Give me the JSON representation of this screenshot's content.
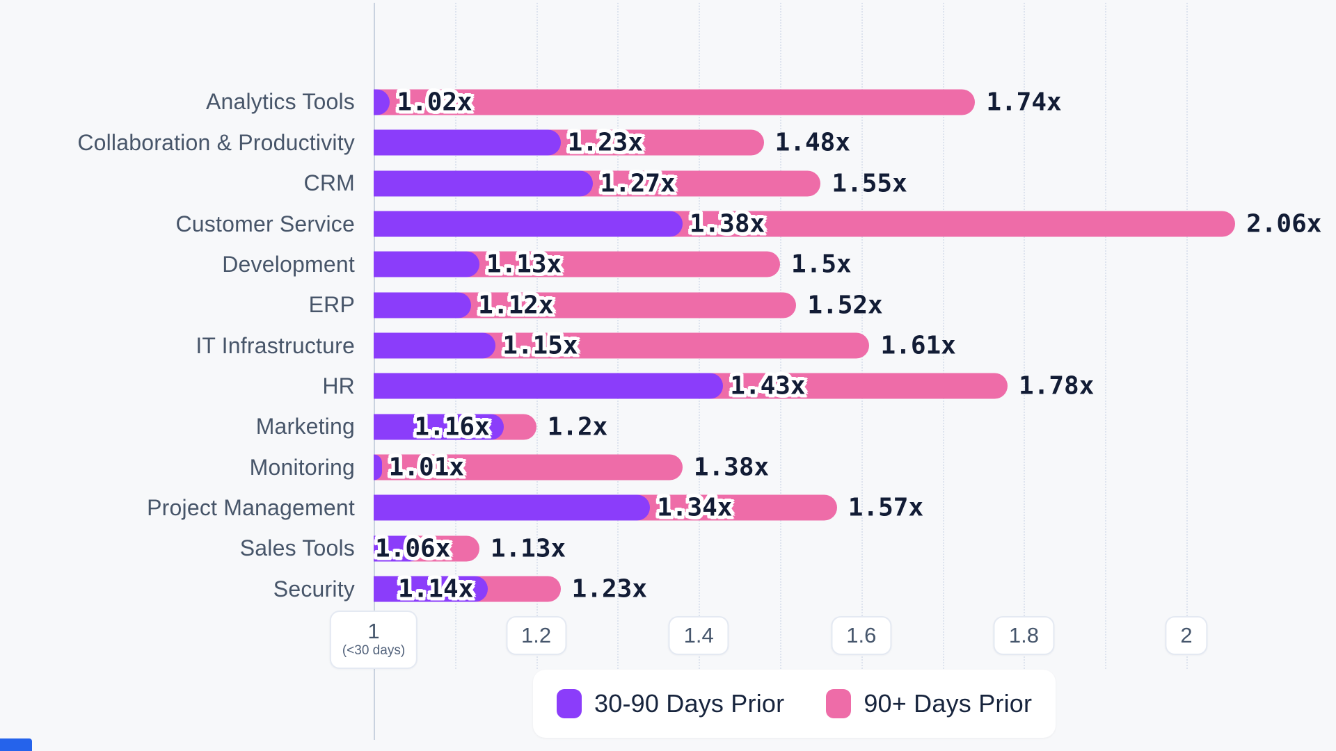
{
  "chart_data": {
    "type": "bar",
    "orientation": "horizontal",
    "categories": [
      "Analytics Tools",
      "Collaboration & Productivity",
      "CRM",
      "Customer Service",
      "Development",
      "ERP",
      "IT Infrastructure",
      "HR",
      "Marketing",
      "Monitoring",
      "Project Management",
      "Sales Tools",
      "Security"
    ],
    "series": [
      {
        "name": "30-90 Days Prior",
        "color": "#8b3dfa",
        "values": [
          1.02,
          1.23,
          1.27,
          1.38,
          1.13,
          1.12,
          1.15,
          1.43,
          1.16,
          1.01,
          1.34,
          1.06,
          1.14
        ],
        "labels": [
          "1.02x",
          "1.23x",
          "1.27x",
          "1.38x",
          "1.13x",
          "1.12x",
          "1.15x",
          "1.43x",
          "1.16x",
          "1.01x",
          "1.34x",
          "1.06x",
          "1.14x"
        ]
      },
      {
        "name": "90+ Days Prior",
        "color": "#ee6ca8",
        "values": [
          1.74,
          1.48,
          1.55,
          2.06,
          1.5,
          1.52,
          1.61,
          1.78,
          1.2,
          1.38,
          1.57,
          1.13,
          1.23
        ],
        "labels": [
          "1.74x",
          "1.48x",
          "1.55x",
          "2.06x",
          "1.5x",
          "1.52x",
          "1.61x",
          "1.78x",
          "1.2x",
          "1.38x",
          "1.57x",
          "1.13x",
          "1.23x"
        ]
      }
    ],
    "value_suffix": "x",
    "x_axis": {
      "min": 1,
      "max": 2.12,
      "minor_grid_step": 0.1,
      "grid_style": "dotted",
      "ticks": [
        {
          "value": 1,
          "label": "1",
          "sublabel": "(<30 days)"
        },
        {
          "value": 1.2,
          "label": "1.2"
        },
        {
          "value": 1.4,
          "label": "1.4"
        },
        {
          "value": 1.6,
          "label": "1.6"
        },
        {
          "value": 1.8,
          "label": "1.8"
        },
        {
          "value": 2,
          "label": "2"
        }
      ]
    },
    "legend": {
      "position": "bottom",
      "items": [
        {
          "label": "30-90 Days Prior",
          "color": "#8b3dfa"
        },
        {
          "label": "90+ Days Prior",
          "color": "#ee6ca8"
        }
      ]
    },
    "colors": {
      "background": "#f7f8fa",
      "axis_line": "#c9d2df",
      "gridline": "#dde3ee",
      "category_text": "#475569",
      "value_text": "#121c35",
      "tick_text": "#46566c",
      "legend_text": "#17243d"
    }
  }
}
